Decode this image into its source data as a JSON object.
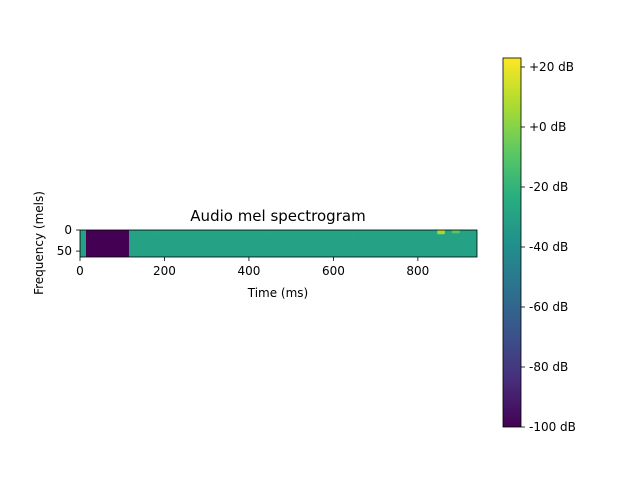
{
  "chart_data": {
    "type": "heatmap",
    "title": "Audio mel spectrogram",
    "xlabel": "Time (ms)",
    "ylabel": "Frequency (mels)",
    "x_range": [
      0,
      940
    ],
    "y_range": [
      0,
      64
    ],
    "x_ticks": [
      0,
      200,
      400,
      600,
      800
    ],
    "x_tick_labels": [
      "0",
      "200",
      "400",
      "600",
      "800"
    ],
    "y_ticks": [
      0,
      50
    ],
    "y_tick_labels": [
      "0",
      "50"
    ],
    "y_inverted": true,
    "colormap": "viridis",
    "colorbar": {
      "range": [
        -100,
        23
      ],
      "ticks": [
        20,
        0,
        -20,
        -40,
        -60,
        -80,
        -100
      ],
      "tick_labels": [
        "+20 dB",
        "+0 dB",
        "-20 dB",
        "-40 dB",
        "-60 dB",
        "-80 dB",
        "-100 dB"
      ]
    },
    "segments": [
      {
        "x_start": 0,
        "x_end": 14,
        "db": -30
      },
      {
        "x_start": 14,
        "x_end": 116,
        "db": -100
      },
      {
        "x_start": 116,
        "x_end": 940,
        "db": -30
      }
    ],
    "hotspots": [
      {
        "x": 855,
        "y_start": 0,
        "y_end": 10,
        "db": 5
      },
      {
        "x": 890,
        "y_start": 0,
        "y_end": 8,
        "db": -10
      }
    ]
  }
}
